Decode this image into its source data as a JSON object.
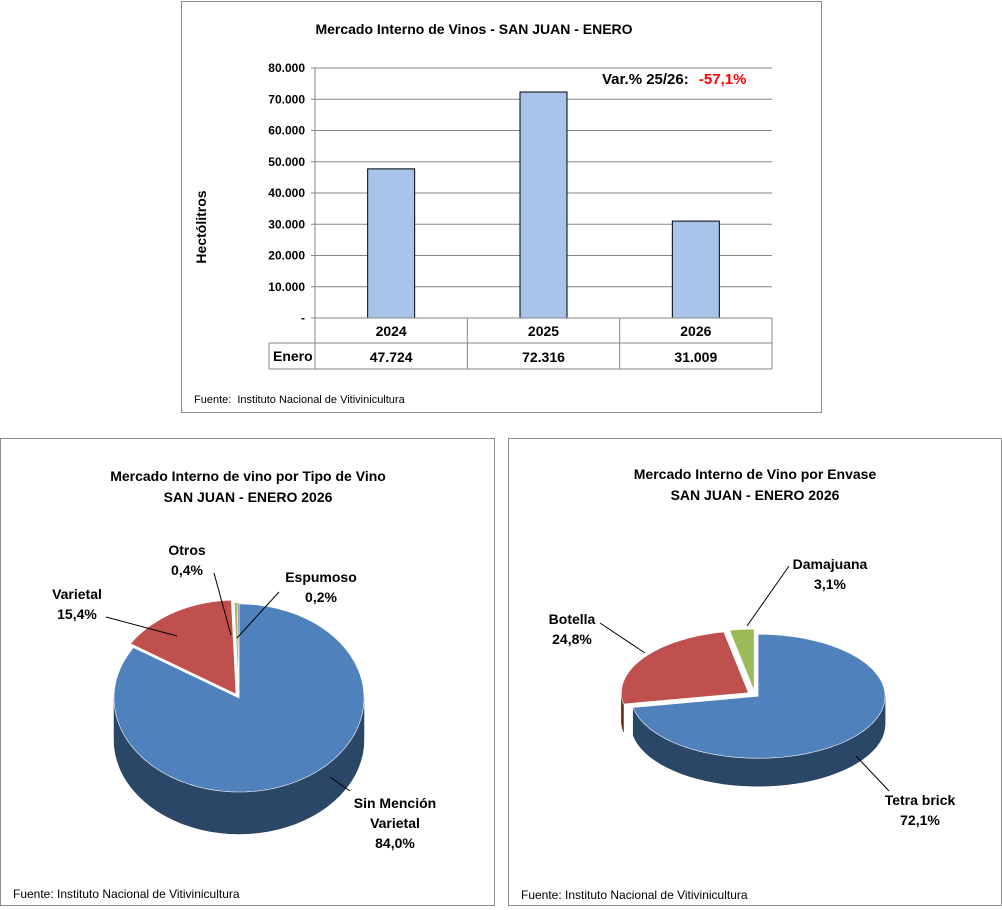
{
  "top_chart": {
    "title": "Mercado Interno de Vinos - SAN JUAN  -  ENERO",
    "ylabel": "Hectólitros",
    "variation_label": "Var.% 25/26:",
    "variation_value": "-57,1%",
    "table_row_label": "Enero",
    "source_label": "Fuente:",
    "source_text": "Instituto Nacional de Vitivinicultura"
  },
  "left_pie": {
    "title_line1": "Mercado Interno de vino por Tipo de Vino",
    "title_line2": "SAN JUAN -  ENERO 2026",
    "source": "Fuente: Instituto Nacional de Vitivinicultura"
  },
  "right_pie": {
    "title_line1": "Mercado Interno de Vino por Envase",
    "title_line2": "SAN JUAN - ENERO 2026",
    "source": "Fuente: Instituto Nacional de Vitivinicultura"
  },
  "chart_data": [
    {
      "type": "bar",
      "title": "Mercado Interno de Vinos - SAN JUAN  -  ENERO",
      "ylabel": "Hectólitros",
      "categories": [
        "2024",
        "2025",
        "2026"
      ],
      "series": [
        {
          "name": "Enero",
          "values": [
            47724,
            72316,
            31009
          ]
        }
      ],
      "value_labels": [
        "47.724",
        "72.316",
        "31.009"
      ],
      "ylim": [
        0,
        80000
      ],
      "yticks": [
        "-",
        "10.000",
        "20.000",
        "30.000",
        "40.000",
        "50.000",
        "60.000",
        "70.000",
        "80.000"
      ],
      "bar_color": "#a9c4eb",
      "grid": true,
      "data_table": true
    },
    {
      "type": "pie",
      "title": "Mercado Interno de vino por Tipo de Vino SAN JUAN -  ENERO 2026",
      "slices": [
        {
          "label": "Sin Mención Varietal",
          "label_lines": [
            "Sin Mención",
            "Varietal"
          ],
          "value": 84.0,
          "pct": "84,0%",
          "color": "#4f81bd"
        },
        {
          "label": "Varietal",
          "label_lines": [
            "Varietal"
          ],
          "value": 15.4,
          "pct": "15,4%",
          "color": "#c0504d"
        },
        {
          "label": "Otros",
          "label_lines": [
            "Otros"
          ],
          "value": 0.4,
          "pct": "0,4%",
          "color": "#9bbb59"
        },
        {
          "label": "Espumoso",
          "label_lines": [
            "Espumoso"
          ],
          "value": 0.2,
          "pct": "0,2%",
          "color": "#8064a2"
        }
      ]
    },
    {
      "type": "pie",
      "title": "Mercado Interno de Vino por Envase SAN JUAN - ENERO 2026",
      "slices": [
        {
          "label": "Tetra brick",
          "label_lines": [
            "Tetra brick"
          ],
          "value": 72.1,
          "pct": "72,1%",
          "color": "#4f81bd"
        },
        {
          "label": "Botella",
          "label_lines": [
            "Botella"
          ],
          "value": 24.8,
          "pct": "24,8%",
          "color": "#c0504d"
        },
        {
          "label": "Damajuana",
          "label_lines": [
            "Damajuana"
          ],
          "value": 3.1,
          "pct": "3,1%",
          "color": "#9bbb59"
        }
      ]
    }
  ]
}
